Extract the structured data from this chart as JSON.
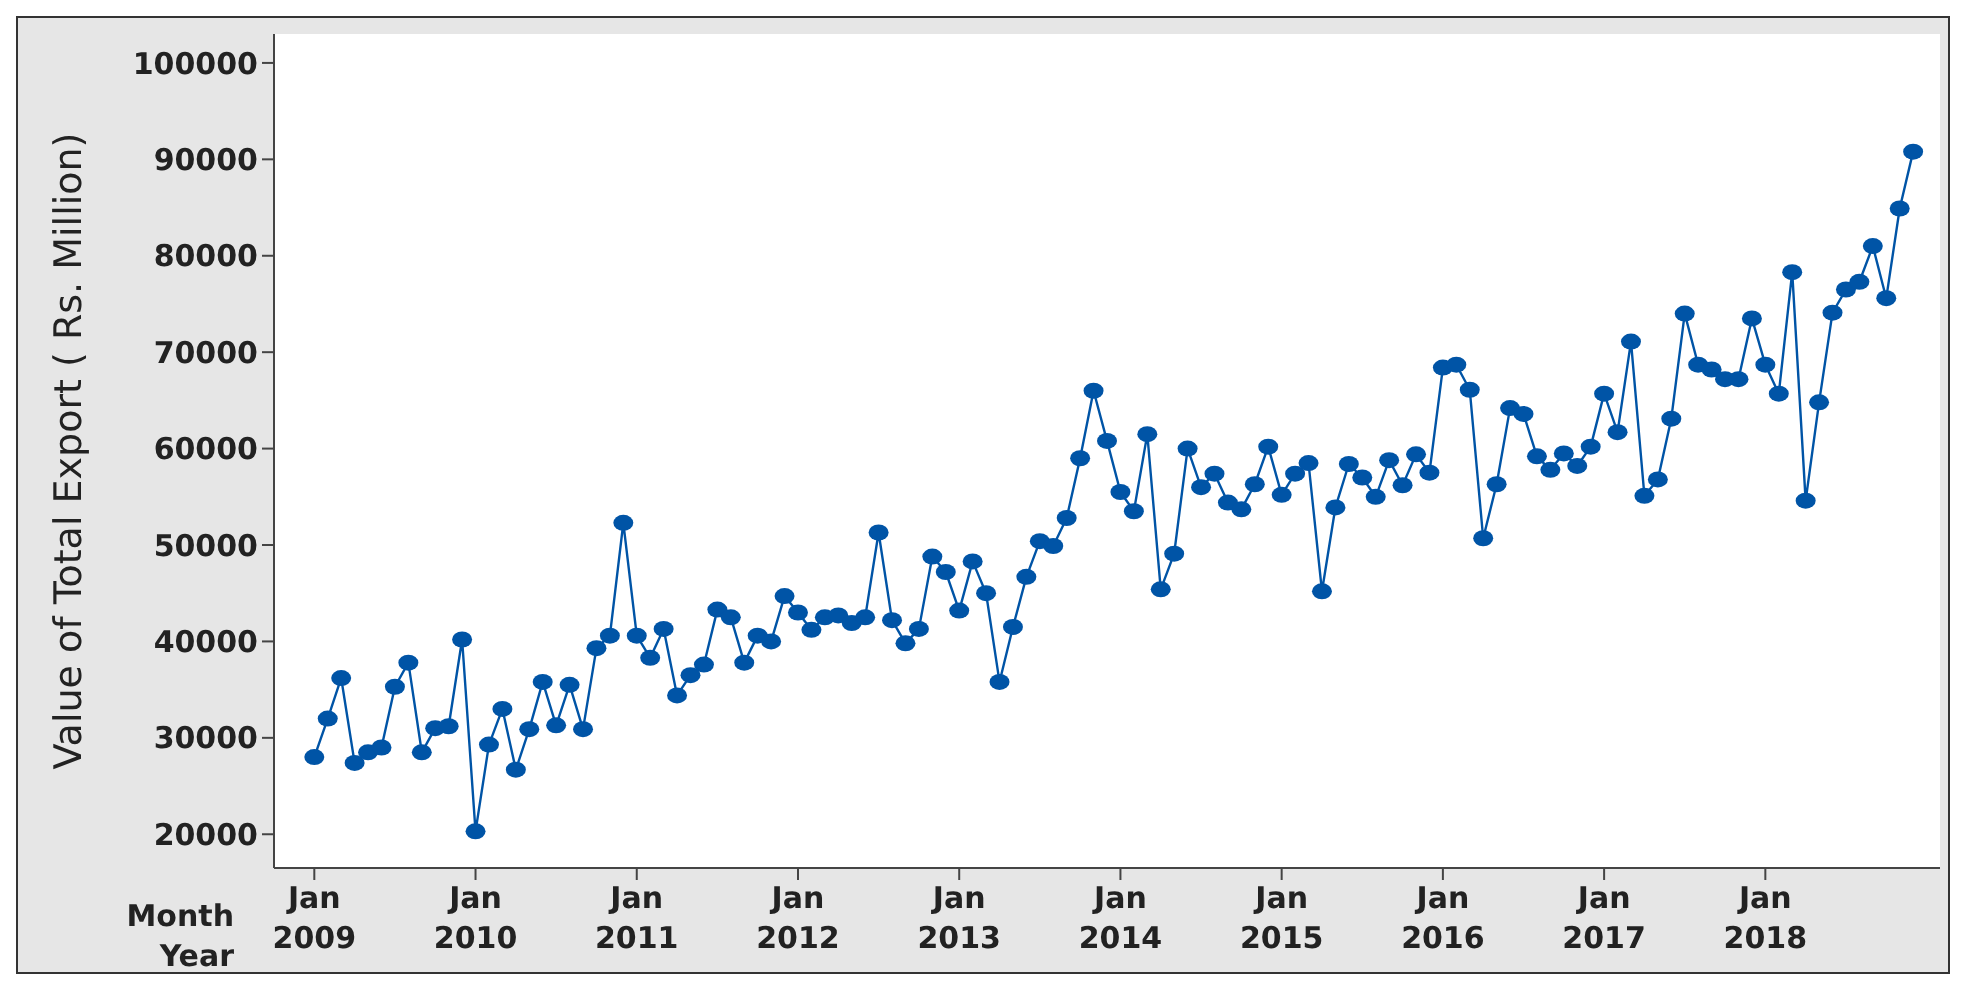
{
  "chart_data": {
    "type": "line",
    "ylabel": "Value of Total Export ( Rs. Million)",
    "annotations": [
      "Month",
      "Year"
    ],
    "x": [
      "2009-01",
      "2009-02",
      "2009-03",
      "2009-04",
      "2009-05",
      "2009-06",
      "2009-07",
      "2009-08",
      "2009-09",
      "2009-10",
      "2009-11",
      "2009-12",
      "2010-01",
      "2010-02",
      "2010-03",
      "2010-04",
      "2010-05",
      "2010-06",
      "2010-07",
      "2010-08",
      "2010-09",
      "2010-10",
      "2010-11",
      "2010-12",
      "2011-01",
      "2011-02",
      "2011-03",
      "2011-04",
      "2011-05",
      "2011-06",
      "2011-07",
      "2011-08",
      "2011-09",
      "2011-10",
      "2011-11",
      "2011-12",
      "2012-01",
      "2012-02",
      "2012-03",
      "2012-04",
      "2012-05",
      "2012-06",
      "2012-07",
      "2012-08",
      "2012-09",
      "2012-10",
      "2012-11",
      "2012-12",
      "2013-01",
      "2013-02",
      "2013-03",
      "2013-04",
      "2013-05",
      "2013-06",
      "2013-07",
      "2013-08",
      "2013-09",
      "2013-10",
      "2013-11",
      "2013-12",
      "2014-01",
      "2014-02",
      "2014-03",
      "2014-04",
      "2014-05",
      "2014-06",
      "2014-07",
      "2014-08",
      "2014-09",
      "2014-10",
      "2014-11",
      "2014-12",
      "2015-01",
      "2015-02",
      "2015-03",
      "2015-04",
      "2015-05",
      "2015-06",
      "2015-07",
      "2015-08",
      "2015-09",
      "2015-10",
      "2015-11",
      "2015-12",
      "2016-01",
      "2016-02",
      "2016-03",
      "2016-04",
      "2016-05",
      "2016-06",
      "2016-07",
      "2016-08",
      "2016-09",
      "2016-10",
      "2016-11",
      "2016-12",
      "2017-01",
      "2017-02",
      "2017-03",
      "2017-04",
      "2017-05",
      "2017-06",
      "2017-07",
      "2017-08",
      "2017-09",
      "2017-10",
      "2017-11",
      "2017-12",
      "2018-01",
      "2018-02",
      "2018-03",
      "2018-04",
      "2018-05",
      "2018-06",
      "2018-07",
      "2018-08",
      "2018-09",
      "2018-10",
      "2018-11",
      "2018-12"
    ],
    "series": [
      {
        "color": "#0054a6",
        "values": [
          28000,
          32000,
          36200,
          27400,
          28500,
          29000,
          35300,
          37800,
          28500,
          31000,
          31200,
          40200,
          20300,
          29300,
          33000,
          26700,
          30900,
          35800,
          31300,
          35500,
          30900,
          39300,
          40600,
          52300,
          40600,
          38300,
          41300,
          34400,
          36500,
          37600,
          43300,
          42500,
          37800,
          40600,
          40000,
          44700,
          43000,
          41200,
          42500,
          42700,
          41900,
          42500,
          51300,
          42200,
          39800,
          41300,
          48800,
          47200,
          43200,
          48300,
          45000,
          35800,
          41500,
          46700,
          50400,
          49900,
          52800,
          59000,
          66000,
          60800,
          55500,
          53500,
          61500,
          45400,
          49100,
          60000,
          56000,
          57400,
          54400,
          53700,
          56300,
          60200,
          55200,
          57400,
          58500,
          45200,
          53900,
          58400,
          57000,
          55000,
          58800,
          56200,
          59400,
          57500,
          68400,
          68700,
          66100,
          50700,
          56300,
          64200,
          63600,
          59200,
          57800,
          59500,
          58200,
          60200,
          65700,
          61700,
          71100,
          55100,
          56800,
          63100,
          74000,
          68700,
          68200,
          67200,
          67200,
          73500,
          68700,
          65700,
          78300,
          54600,
          64800,
          74100,
          76500,
          77300,
          81000,
          75600,
          84900,
          90800
        ]
      }
    ],
    "xlim": [
      "2008-10",
      "2019-02"
    ],
    "xticks": [
      {
        "value": "2009-01",
        "label": "Jan\n2009"
      },
      {
        "value": "2010-01",
        "label": "Jan\n2010"
      },
      {
        "value": "2011-01",
        "label": "Jan\n2011"
      },
      {
        "value": "2012-01",
        "label": "Jan\n2012"
      },
      {
        "value": "2013-01",
        "label": "Jan\n2013"
      },
      {
        "value": "2014-01",
        "label": "Jan\n2014"
      },
      {
        "value": "2015-01",
        "label": "Jan\n2015"
      },
      {
        "value": "2016-01",
        "label": "Jan\n2016"
      },
      {
        "value": "2017-01",
        "label": "Jan\n2017"
      },
      {
        "value": "2018-01",
        "label": "Jan\n2018"
      }
    ],
    "ylim": [
      16500,
      103000
    ],
    "yticks": [
      20000,
      30000,
      40000,
      50000,
      60000,
      70000,
      80000,
      90000,
      100000
    ],
    "marker": "circle",
    "line_style": "solid",
    "grid": false,
    "legend": false
  }
}
